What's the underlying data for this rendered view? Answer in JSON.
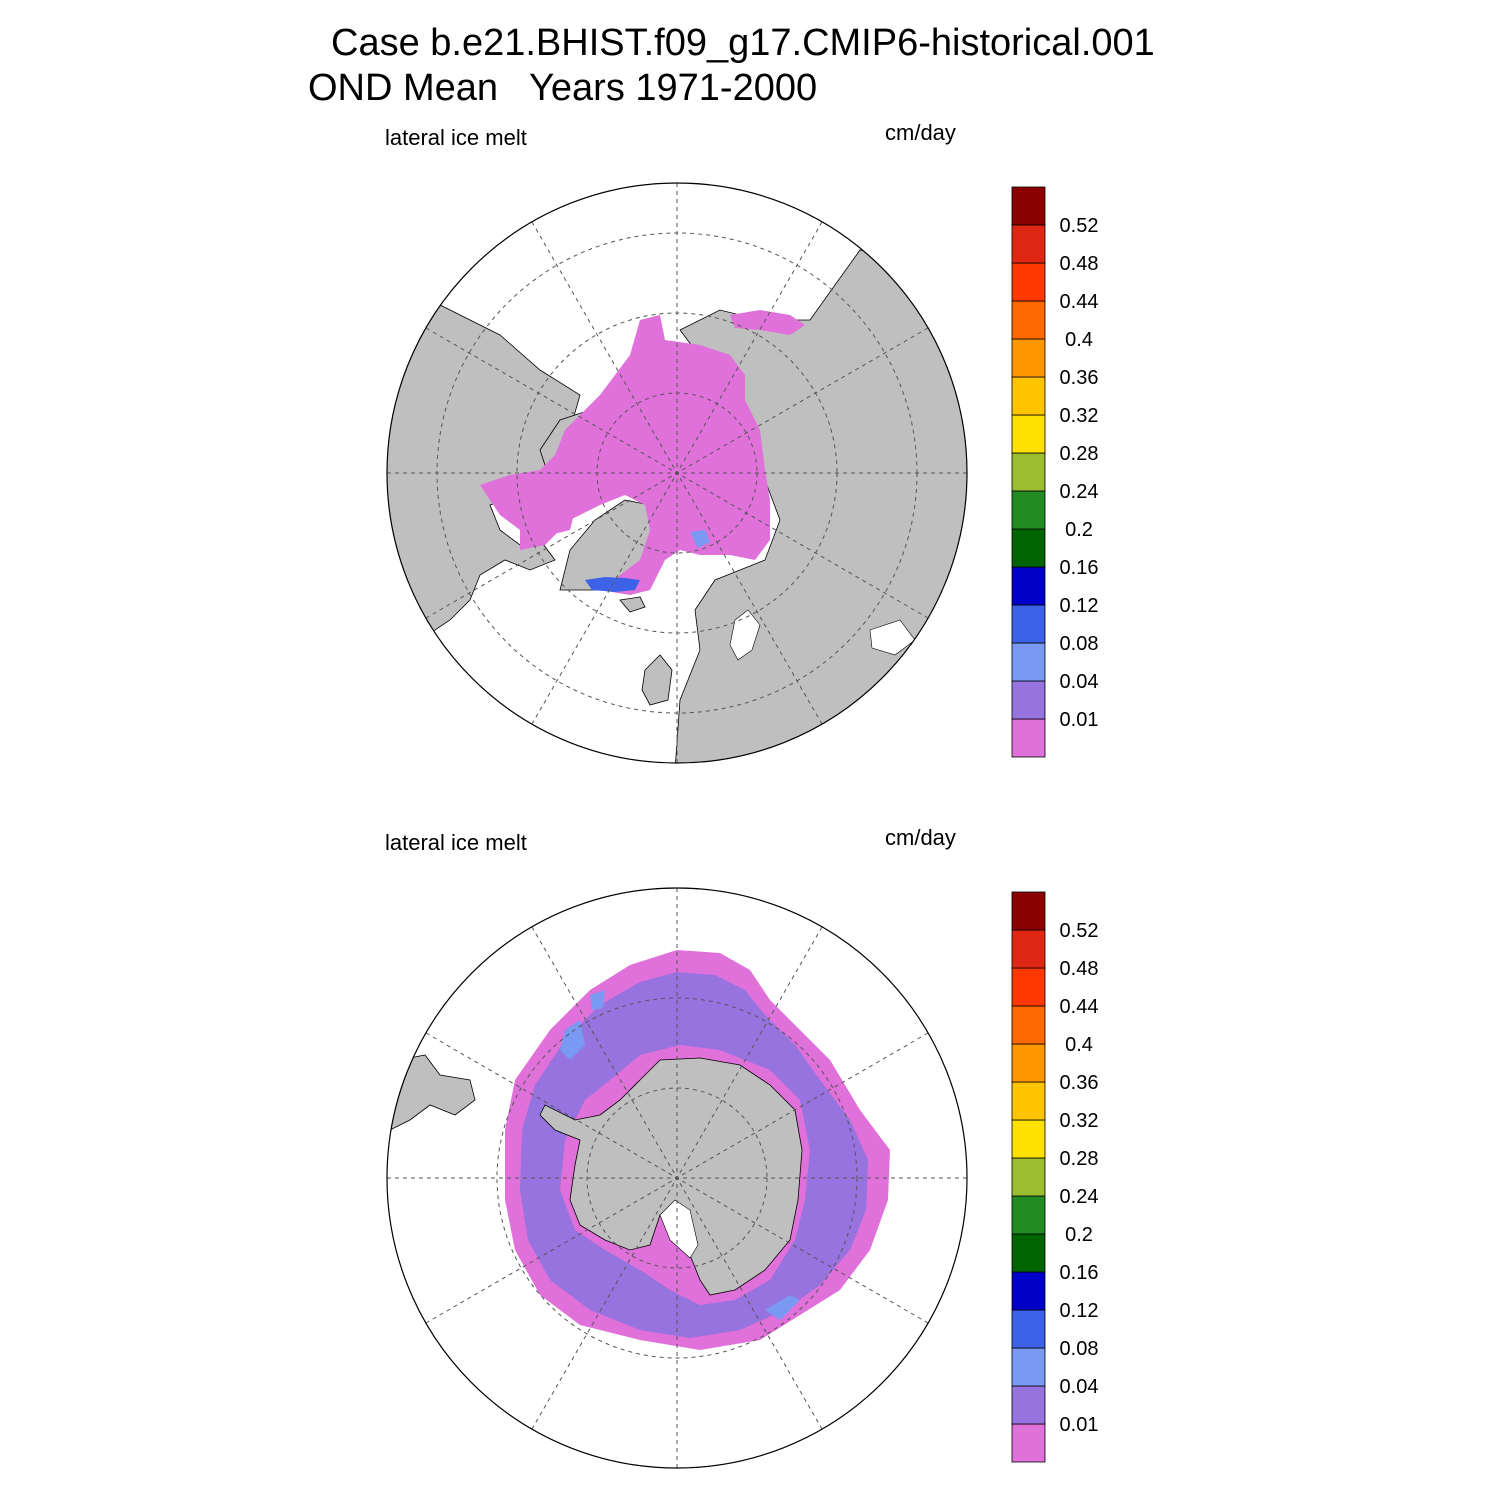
{
  "title": {
    "line1": "Case b.e21.BHIST.f09_g17.CMIP6-historical.001",
    "line2": "OND Mean   Years 1971-2000"
  },
  "panels": [
    {
      "hemisphere": "north",
      "variable_label": "lateral ice melt",
      "units_label": "cm/day"
    },
    {
      "hemisphere": "south",
      "variable_label": "lateral ice melt",
      "units_label": "cm/day"
    }
  ],
  "colorbar": {
    "levels": [
      "0.01",
      "0.04",
      "0.08",
      "0.12",
      "0.16",
      "0.2",
      "0.24",
      "0.28",
      "0.32",
      "0.36",
      "0.4",
      "0.44",
      "0.48",
      "0.52"
    ],
    "colors": [
      "#e070da",
      "#9673de",
      "#7a99f2",
      "#3d62e8",
      "#0000c8",
      "#006400",
      "#228b22",
      "#9bbd32",
      "#ffe000",
      "#ffc300",
      "#ff9600",
      "#ff6800",
      "#ff3700",
      "#de2814",
      "#8b0000"
    ]
  },
  "map_colors": {
    "land": "#bfbfbf",
    "ocean_no_ice": "#ffffff",
    "melt_lowest": "#e070da",
    "melt_0_01": "#9673de",
    "melt_0_04": "#7a99f2",
    "melt_0_08": "#3d62e8"
  }
}
